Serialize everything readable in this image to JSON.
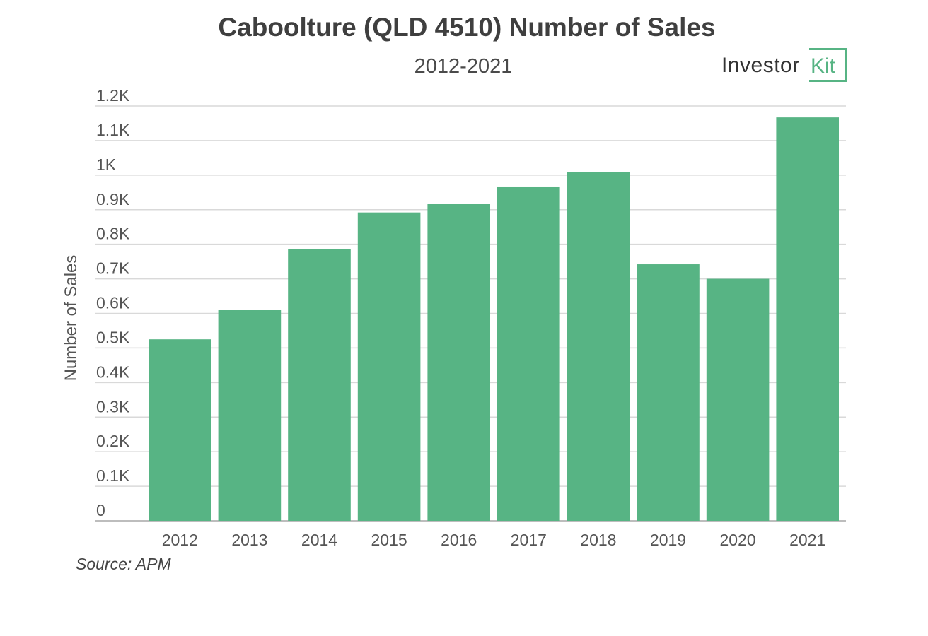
{
  "chart_data": {
    "type": "bar",
    "title": "Caboolture (QLD 4510) Number of Sales",
    "subtitle": "2012-2021",
    "ylabel": "Number of Sales",
    "xlabel": "",
    "categories": [
      "2012",
      "2013",
      "2014",
      "2015",
      "2016",
      "2017",
      "2018",
      "2019",
      "2020",
      "2021"
    ],
    "values": [
      525,
      610,
      785,
      892,
      917,
      967,
      1008,
      742,
      700,
      1167
    ],
    "ylim": [
      0,
      1200
    ],
    "yticks": [
      0,
      100,
      200,
      300,
      400,
      500,
      600,
      700,
      800,
      900,
      1000,
      1100,
      1200
    ],
    "ytick_labels": [
      "0",
      "0.1K",
      "0.2K",
      "0.3K",
      "0.4K",
      "0.5K",
      "0.6K",
      "0.7K",
      "0.8K",
      "0.9K",
      "1K",
      "1.1K",
      "1.2K"
    ],
    "bar_color": "#57b484",
    "grid": true
  },
  "logo": {
    "text": "Investor",
    "accent": "Kit",
    "accent_color": "#57b484"
  },
  "source": "Source: APM"
}
